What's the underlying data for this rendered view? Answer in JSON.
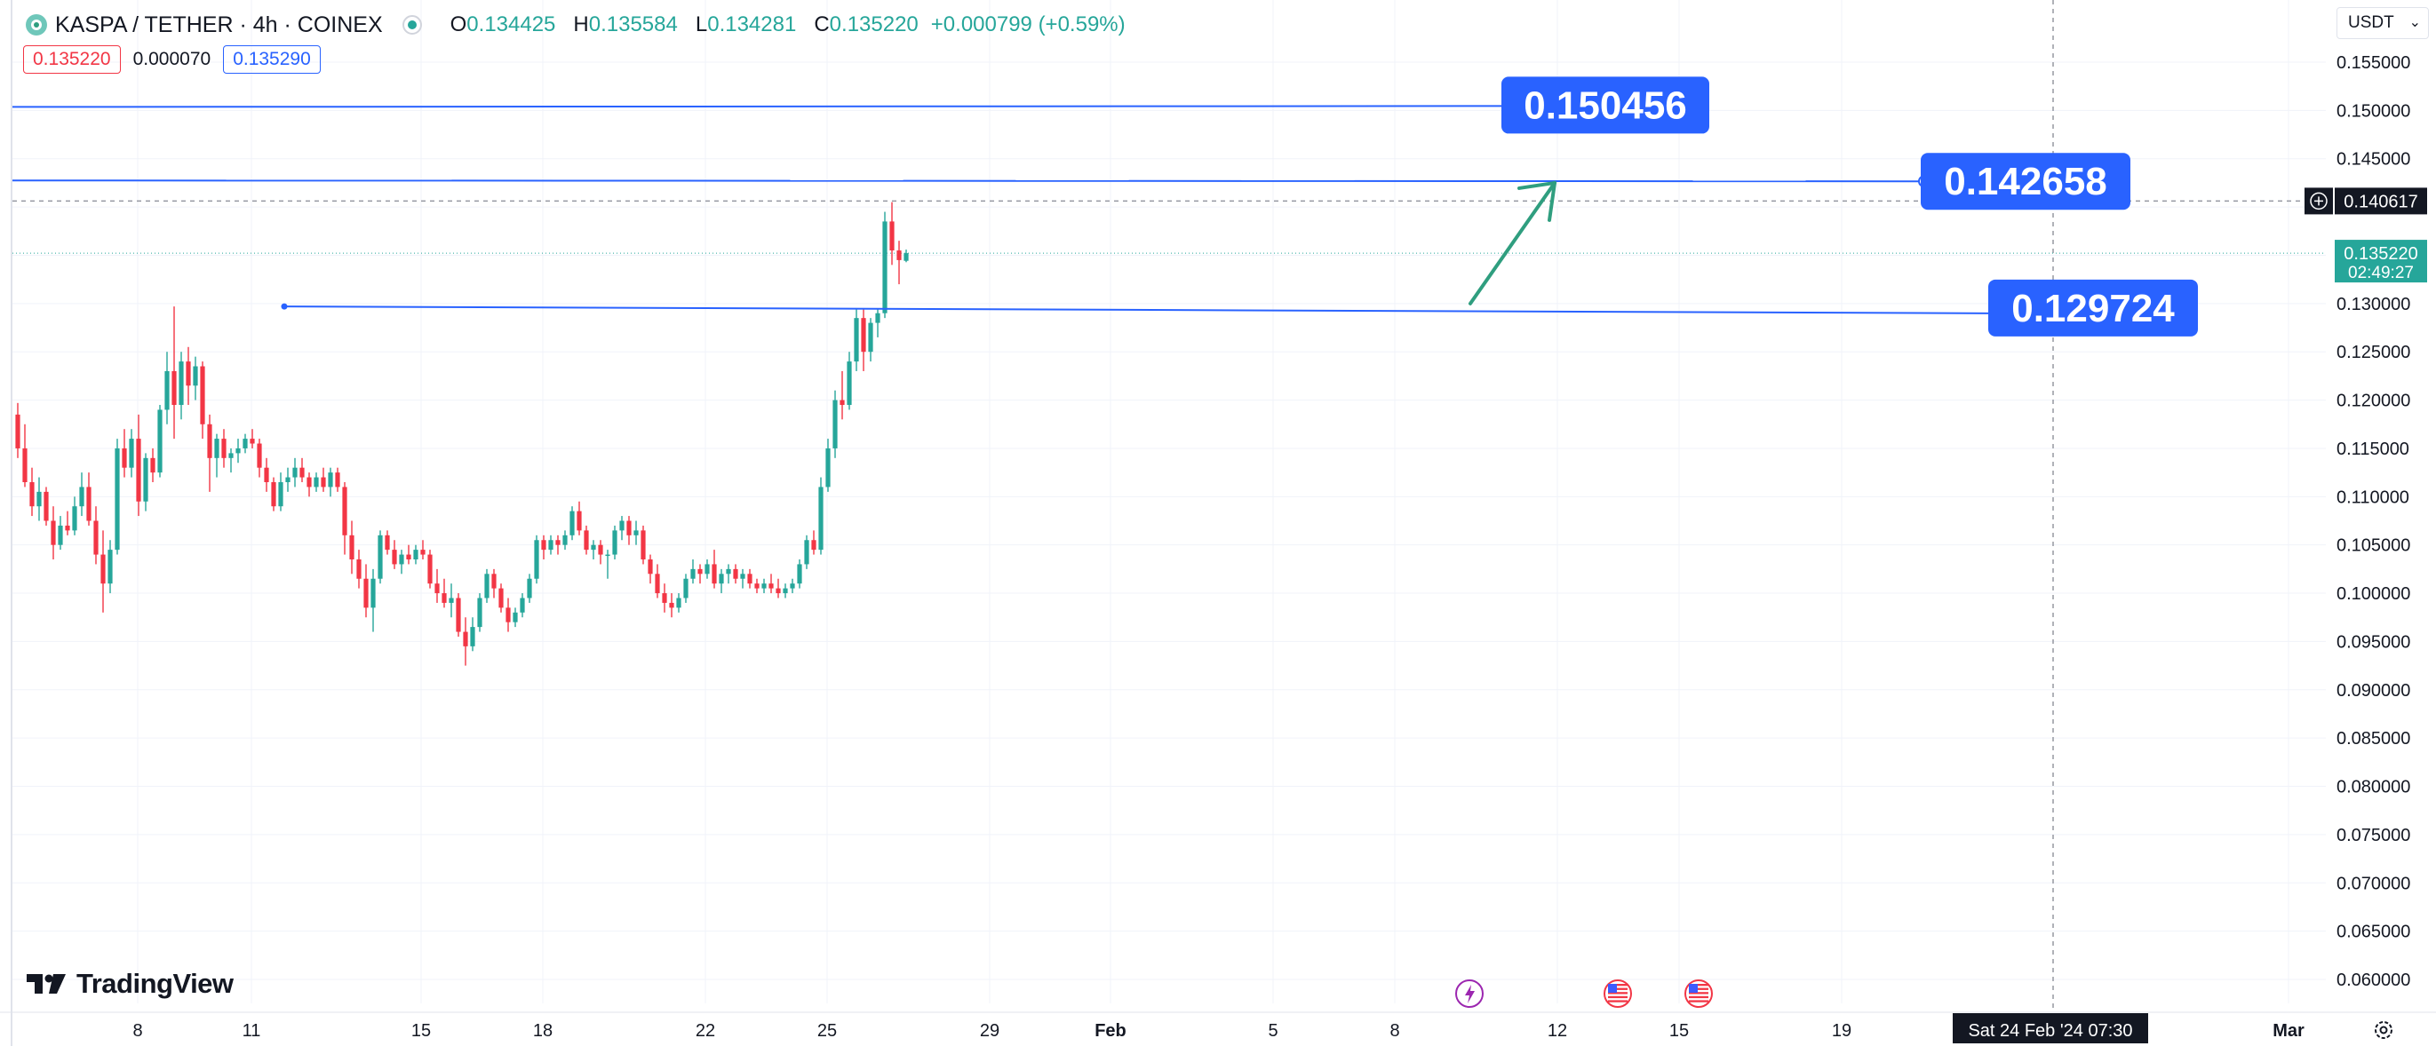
{
  "header": {
    "symbol": "KASPA / TETHER · 4h · COINEX",
    "open_label": "O",
    "open": "0.134425",
    "high_label": "H",
    "high": "0.135584",
    "low_label": "L",
    "low": "0.134281",
    "close_label": "C",
    "close": "0.135220",
    "change": "+0.000799 (+0.59%)"
  },
  "quote": {
    "bid": "0.135220",
    "spread": "0.000070",
    "ask": "0.135290"
  },
  "currency": {
    "label": "USDT"
  },
  "brand": {
    "name": "TradingView"
  },
  "colors": {
    "up": "#26a69a",
    "down": "#f23645",
    "drawing": "#2962ff",
    "arrow": "#2f9e7f"
  },
  "price_axis": {
    "ticks": [
      "0.155000",
      "0.150000",
      "0.145000",
      "0.140000",
      "0.135000",
      "0.130000",
      "0.125000",
      "0.120000",
      "0.115000",
      "0.110000",
      "0.105000",
      "0.100000",
      "0.095000",
      "0.090000",
      "0.085000",
      "0.080000",
      "0.075000",
      "0.070000",
      "0.065000",
      "0.060000"
    ],
    "crosshair_price": "0.140617",
    "last_price": "0.135220",
    "countdown": "02:49:27"
  },
  "time_axis": {
    "labels": [
      "8",
      "11",
      "15",
      "18",
      "22",
      "25",
      "29",
      "Feb",
      "5",
      "8",
      "12",
      "15",
      "19",
      "Mar"
    ],
    "crosshair_time": "Sat 24 Feb '24   07:30"
  },
  "drawings": {
    "level_top": "0.150456",
    "level_mid": "0.142658",
    "level_low": "0.129724"
  },
  "icons": [
    "lightning-event-icon",
    "us-flag-event-icon",
    "us-flag-event-icon",
    "settings-gear-icon",
    "add-alert-plus-icon"
  ],
  "chart_data": {
    "type": "candlestick",
    "interval": "4h",
    "ylim": [
      0.0575,
      0.1575
    ],
    "candles_ohlc": [
      [
        0.1185,
        0.1197,
        0.114,
        0.115
      ],
      [
        0.115,
        0.1175,
        0.111,
        0.1115
      ],
      [
        0.1115,
        0.113,
        0.108,
        0.109
      ],
      [
        0.109,
        0.112,
        0.1075,
        0.1105
      ],
      [
        0.1105,
        0.111,
        0.107,
        0.1075
      ],
      [
        0.1075,
        0.109,
        0.1035,
        0.105
      ],
      [
        0.105,
        0.108,
        0.1045,
        0.107
      ],
      [
        0.107,
        0.1085,
        0.106,
        0.1065
      ],
      [
        0.1065,
        0.11,
        0.106,
        0.109
      ],
      [
        0.109,
        0.1125,
        0.108,
        0.111
      ],
      [
        0.111,
        0.1125,
        0.107,
        0.1075
      ],
      [
        0.1075,
        0.109,
        0.103,
        0.104
      ],
      [
        0.104,
        0.1065,
        0.098,
        0.101
      ],
      [
        0.101,
        0.1055,
        0.1,
        0.1045
      ],
      [
        0.1045,
        0.116,
        0.104,
        0.115
      ],
      [
        0.115,
        0.117,
        0.112,
        0.113
      ],
      [
        0.113,
        0.117,
        0.112,
        0.116
      ],
      [
        0.116,
        0.1185,
        0.108,
        0.1095
      ],
      [
        0.1095,
        0.1145,
        0.1085,
        0.114
      ],
      [
        0.114,
        0.115,
        0.1115,
        0.1125
      ],
      [
        0.1125,
        0.1195,
        0.112,
        0.119
      ],
      [
        0.119,
        0.125,
        0.1175,
        0.123
      ],
      [
        0.123,
        0.1297,
        0.116,
        0.1195
      ],
      [
        0.1195,
        0.125,
        0.118,
        0.124
      ],
      [
        0.124,
        0.1255,
        0.1195,
        0.1215
      ],
      [
        0.1215,
        0.1245,
        0.12,
        0.1235
      ],
      [
        0.1235,
        0.124,
        0.116,
        0.1175
      ],
      [
        0.1175,
        0.1185,
        0.1105,
        0.114
      ],
      [
        0.114,
        0.1165,
        0.112,
        0.116
      ],
      [
        0.116,
        0.117,
        0.113,
        0.114
      ],
      [
        0.114,
        0.115,
        0.1125,
        0.1145
      ],
      [
        0.1145,
        0.116,
        0.1135,
        0.115
      ],
      [
        0.115,
        0.1165,
        0.1145,
        0.116
      ],
      [
        0.116,
        0.117,
        0.115,
        0.1155
      ],
      [
        0.1155,
        0.116,
        0.112,
        0.113
      ],
      [
        0.113,
        0.114,
        0.1105,
        0.1115
      ],
      [
        0.1115,
        0.112,
        0.1085,
        0.109
      ],
      [
        0.109,
        0.1125,
        0.1085,
        0.1115
      ],
      [
        0.1115,
        0.113,
        0.1105,
        0.112
      ],
      [
        0.112,
        0.114,
        0.111,
        0.113
      ],
      [
        0.113,
        0.114,
        0.1115,
        0.112
      ],
      [
        0.112,
        0.1125,
        0.11,
        0.111
      ],
      [
        0.111,
        0.1125,
        0.1105,
        0.112
      ],
      [
        0.112,
        0.113,
        0.1105,
        0.111
      ],
      [
        0.111,
        0.113,
        0.11,
        0.1125
      ],
      [
        0.1125,
        0.113,
        0.1105,
        0.111
      ],
      [
        0.111,
        0.1115,
        0.104,
        0.106
      ],
      [
        0.106,
        0.1075,
        0.102,
        0.1035
      ],
      [
        0.1035,
        0.1045,
        0.1005,
        0.1015
      ],
      [
        0.1015,
        0.103,
        0.0975,
        0.0985
      ],
      [
        0.0985,
        0.1025,
        0.096,
        0.1015
      ],
      [
        0.1015,
        0.1065,
        0.101,
        0.106
      ],
      [
        0.106,
        0.1065,
        0.104,
        0.1045
      ],
      [
        0.1045,
        0.1055,
        0.1025,
        0.103
      ],
      [
        0.103,
        0.1045,
        0.102,
        0.104
      ],
      [
        0.104,
        0.105,
        0.103,
        0.1035
      ],
      [
        0.1035,
        0.105,
        0.103,
        0.1045
      ],
      [
        0.1045,
        0.1055,
        0.1035,
        0.104
      ],
      [
        0.104,
        0.1045,
        0.1005,
        0.101
      ],
      [
        0.101,
        0.1025,
        0.099,
        0.1
      ],
      [
        0.1,
        0.1015,
        0.0985,
        0.099
      ],
      [
        0.099,
        0.101,
        0.0975,
        0.0995
      ],
      [
        0.0995,
        0.1,
        0.0955,
        0.096
      ],
      [
        0.096,
        0.0975,
        0.0925,
        0.0945
      ],
      [
        0.0945,
        0.0975,
        0.094,
        0.0965
      ],
      [
        0.0965,
        0.1,
        0.096,
        0.0995
      ],
      [
        0.0995,
        0.1025,
        0.099,
        0.102
      ],
      [
        0.102,
        0.1025,
        0.0995,
        0.1005
      ],
      [
        0.1005,
        0.101,
        0.098,
        0.0985
      ],
      [
        0.0985,
        0.0995,
        0.096,
        0.097
      ],
      [
        0.097,
        0.0985,
        0.0965,
        0.098
      ],
      [
        0.098,
        0.1,
        0.0975,
        0.0995
      ],
      [
        0.0995,
        0.102,
        0.099,
        0.1015
      ],
      [
        0.1015,
        0.106,
        0.101,
        0.1055
      ],
      [
        0.1055,
        0.106,
        0.1035,
        0.1045
      ],
      [
        0.1045,
        0.106,
        0.104,
        0.1055
      ],
      [
        0.1055,
        0.106,
        0.104,
        0.105
      ],
      [
        0.105,
        0.1065,
        0.1045,
        0.106
      ],
      [
        0.106,
        0.109,
        0.1055,
        0.1085
      ],
      [
        0.1085,
        0.1095,
        0.106,
        0.1065
      ],
      [
        0.1065,
        0.107,
        0.104,
        0.1045
      ],
      [
        0.1045,
        0.1055,
        0.1035,
        0.105
      ],
      [
        0.105,
        0.1055,
        0.103,
        0.104
      ],
      [
        0.104,
        0.1045,
        0.1015,
        0.104
      ],
      [
        0.104,
        0.107,
        0.1035,
        0.1065
      ],
      [
        0.1065,
        0.108,
        0.1055,
        0.1075
      ],
      [
        0.1075,
        0.108,
        0.105,
        0.106
      ],
      [
        0.106,
        0.1075,
        0.105,
        0.1065
      ],
      [
        0.1065,
        0.107,
        0.103,
        0.1035
      ],
      [
        0.1035,
        0.104,
        0.101,
        0.102
      ],
      [
        0.102,
        0.103,
        0.0995,
        0.1
      ],
      [
        0.1,
        0.101,
        0.098,
        0.099
      ],
      [
        0.099,
        0.1,
        0.0975,
        0.0985
      ],
      [
        0.0985,
        0.1,
        0.098,
        0.0995
      ],
      [
        0.0995,
        0.102,
        0.099,
        0.1015
      ],
      [
        0.1015,
        0.1035,
        0.101,
        0.1025
      ],
      [
        0.1025,
        0.103,
        0.101,
        0.102
      ],
      [
        0.102,
        0.1035,
        0.1015,
        0.103
      ],
      [
        0.103,
        0.1045,
        0.1005,
        0.101
      ],
      [
        0.101,
        0.1025,
        0.1,
        0.102
      ],
      [
        0.102,
        0.103,
        0.101,
        0.1025
      ],
      [
        0.1025,
        0.103,
        0.101,
        0.1015
      ],
      [
        0.1015,
        0.1025,
        0.1005,
        0.102
      ],
      [
        0.102,
        0.1025,
        0.1005,
        0.101
      ],
      [
        0.101,
        0.1015,
        0.1,
        0.1005
      ],
      [
        0.1005,
        0.1015,
        0.1,
        0.101
      ],
      [
        0.101,
        0.102,
        0.1,
        0.1005
      ],
      [
        0.1005,
        0.1015,
        0.0995,
        0.1
      ],
      [
        0.1,
        0.101,
        0.0995,
        0.1005
      ],
      [
        0.1005,
        0.1015,
        0.1,
        0.101
      ],
      [
        0.101,
        0.1035,
        0.1005,
        0.103
      ],
      [
        0.103,
        0.106,
        0.1025,
        0.1055
      ],
      [
        0.1055,
        0.1065,
        0.104,
        0.1045
      ],
      [
        0.1045,
        0.112,
        0.104,
        0.111
      ],
      [
        0.111,
        0.116,
        0.1105,
        0.115
      ],
      [
        0.115,
        0.121,
        0.114,
        0.12
      ],
      [
        0.12,
        0.123,
        0.118,
        0.1195
      ],
      [
        0.1195,
        0.125,
        0.119,
        0.124
      ],
      [
        0.124,
        0.1295,
        0.123,
        0.1285
      ],
      [
        0.1285,
        0.1295,
        0.123,
        0.125
      ],
      [
        0.125,
        0.1285,
        0.124,
        0.128
      ],
      [
        0.128,
        0.1295,
        0.1265,
        0.129
      ],
      [
        0.129,
        0.1395,
        0.1285,
        0.1385
      ],
      [
        0.1385,
        0.1405,
        0.134,
        0.1355
      ],
      [
        0.1355,
        0.1365,
        0.132,
        0.1345
      ],
      [
        0.134425,
        0.135584,
        0.134281,
        0.13522
      ]
    ],
    "horizontal_levels": [
      0.150456,
      0.142658,
      0.129724
    ],
    "last_close": 0.13522
  }
}
